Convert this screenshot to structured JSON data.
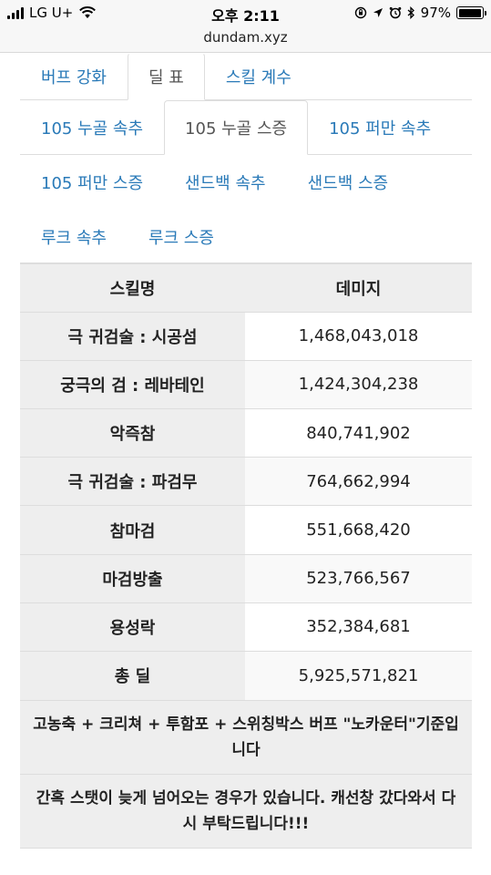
{
  "status_bar": {
    "carrier": "LG U+",
    "time": "오후 2:11",
    "battery_percent": "97%",
    "battery_level": 0.97,
    "icons": [
      "signal-icon",
      "wifi-icon",
      "orientation-lock-icon",
      "location-icon",
      "alarm-icon",
      "bluetooth-icon",
      "battery-icon"
    ]
  },
  "address_bar": {
    "url": "dundam.xyz"
  },
  "top_tabs": [
    {
      "label": "버프 강화",
      "active": false
    },
    {
      "label": "딜 표",
      "active": true
    },
    {
      "label": "스킬 계수",
      "active": false
    }
  ],
  "sub_tabs": [
    {
      "label": "105 누골 속추",
      "active": false
    },
    {
      "label": "105 누골 스증",
      "active": true
    },
    {
      "label": "105 퍼만 속추",
      "active": false
    },
    {
      "label": "105 퍼만 스증",
      "active": false
    },
    {
      "label": "샌드백 속추",
      "active": false
    },
    {
      "label": "샌드백 스증",
      "active": false
    },
    {
      "label": "루크 속추",
      "active": false
    },
    {
      "label": "루크 스증",
      "active": false
    }
  ],
  "table": {
    "headers": [
      "스킬명",
      "데미지"
    ],
    "rows": [
      {
        "name": "극 귀검술 : 시공섬",
        "damage": "1,468,043,018"
      },
      {
        "name": "궁극의 검 : 레바테인",
        "damage": "1,424,304,238"
      },
      {
        "name": "악즉참",
        "damage": "840,741,902"
      },
      {
        "name": "극 귀검술 : 파검무",
        "damage": "764,662,994"
      },
      {
        "name": "참마검",
        "damage": "551,668,420"
      },
      {
        "name": "마검방출",
        "damage": "523,766,567"
      },
      {
        "name": "용성락",
        "damage": "352,384,681"
      },
      {
        "name": "총 딜",
        "damage": "5,925,571,821"
      }
    ]
  },
  "notes": [
    "고농축 + 크리쳐 + 투함포 + 스위칭박스 버프 \"노카운터\"기준입니다",
    "간혹 스탯이 늦게 넘어오는 경우가 있습니다. 캐선창 갔다와서 다시 부탁드립니다!!!"
  ],
  "colors": {
    "link": "#2a7ab8",
    "active_tab_text": "#555555",
    "header_bg": "#eeeeee",
    "border": "#dddddd"
  }
}
